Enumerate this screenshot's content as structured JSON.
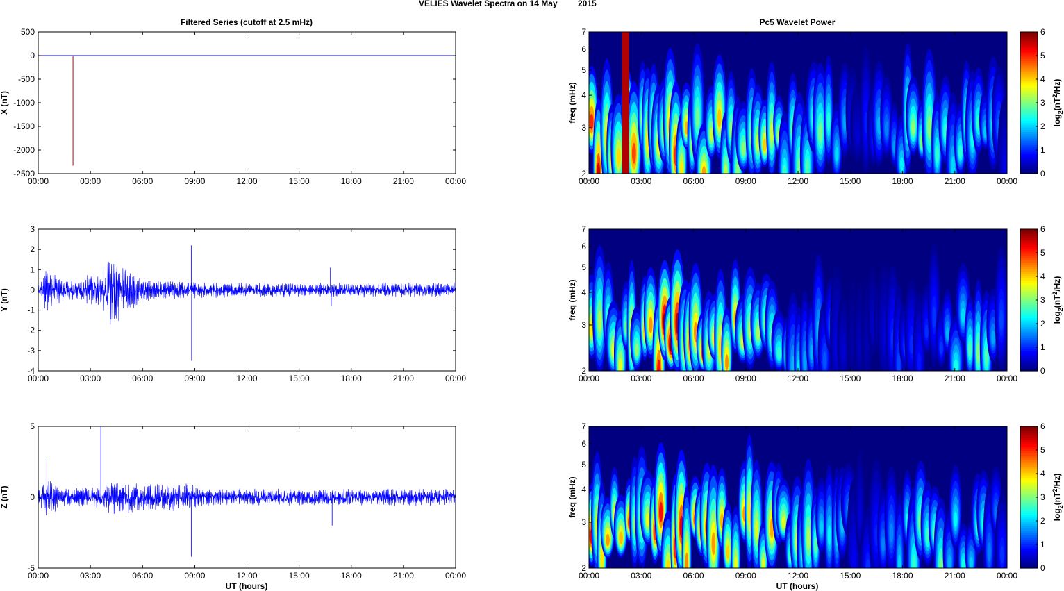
{
  "figure": {
    "title_left": "VELIES Wavelet Spectra on 14 May",
    "title_right": "2015",
    "left_column_title": "Filtered Series (cutoff at 2.5 mHz)",
    "right_column_title": "Pc5 Wavelet Power",
    "xlabel": "UT (hours)"
  },
  "chart_data": [
    {
      "type": "line",
      "name": "X",
      "ylabel": "X (nT)",
      "xlim": [
        0,
        24
      ],
      "ylim": [
        -2500,
        500
      ],
      "yticks": [
        500,
        0,
        -500,
        -1000,
        -1500,
        -2000,
        -2500
      ],
      "xticks": [
        "00:00",
        "03:00",
        "06:00",
        "09:00",
        "12:00",
        "15:00",
        "18:00",
        "21:00",
        "00:00"
      ],
      "line_color": "#0000ff",
      "features": [
        {
          "x": 2.0,
          "y": -2330,
          "color": "#8b1a1a"
        }
      ]
    },
    {
      "type": "line",
      "name": "Y",
      "ylabel": "Y (nT)",
      "xlim": [
        0,
        24
      ],
      "ylim": [
        -4,
        3
      ],
      "yticks": [
        3,
        2,
        1,
        0,
        -1,
        -2,
        -3,
        -4
      ],
      "xticks": [
        "00:00",
        "03:00",
        "06:00",
        "09:00",
        "12:00",
        "15:00",
        "18:00",
        "21:00",
        "00:00"
      ],
      "line_color": "#0000ff",
      "envelope": [
        [
          0,
          0.3
        ],
        [
          0.5,
          0.9
        ],
        [
          1.5,
          0.4
        ],
        [
          3.5,
          0.7
        ],
        [
          4.2,
          1.6
        ],
        [
          5,
          0.9
        ],
        [
          6.5,
          0.4
        ],
        [
          9,
          0.35
        ],
        [
          12,
          0.3
        ],
        [
          16,
          0.3
        ],
        [
          24,
          0.3
        ]
      ],
      "spikes": [
        {
          "x": 8.8,
          "y": 2.2
        },
        {
          "x": 8.82,
          "y": -3.5
        },
        {
          "x": 16.8,
          "y": 1.1
        },
        {
          "x": 16.85,
          "y": -0.8
        }
      ]
    },
    {
      "type": "line",
      "name": "Z",
      "ylabel": "Z (nT)",
      "xlim": [
        0,
        24
      ],
      "ylim": [
        -5,
        5
      ],
      "yticks": [
        5,
        0,
        -5
      ],
      "xticks": [
        "00:00",
        "03:00",
        "06:00",
        "09:00",
        "12:00",
        "15:00",
        "18:00",
        "21:00",
        "00:00"
      ],
      "line_color": "#0000ff",
      "envelope": [
        [
          0,
          0.5
        ],
        [
          0.5,
          1.1
        ],
        [
          1.5,
          0.5
        ],
        [
          3.5,
          0.6
        ],
        [
          4.2,
          1.0
        ],
        [
          6.5,
          0.8
        ],
        [
          8.5,
          0.8
        ],
        [
          10,
          0.5
        ],
        [
          24,
          0.5
        ]
      ],
      "spikes": [
        {
          "x": 0.5,
          "y": 2.6
        },
        {
          "x": 3.6,
          "y": 5.0
        },
        {
          "x": 8.8,
          "y": -4.2
        },
        {
          "x": 16.9,
          "y": -2.0
        }
      ]
    },
    {
      "type": "heatmap",
      "name": "X wavelet",
      "ylabel": "freq (mHz)",
      "ylim": [
        2,
        7
      ],
      "yscale": "log",
      "yticks": [
        7,
        6,
        5,
        4,
        3,
        2
      ],
      "xticks": [
        "00:00",
        "03:00",
        "06:00",
        "09:00",
        "12:00",
        "15:00",
        "18:00",
        "21:00",
        "00:00"
      ],
      "colorbar": {
        "label": "log2(nT2/Hz)",
        "range": [
          0,
          6
        ],
        "ticks": [
          6,
          5,
          4,
          3,
          2,
          1,
          0
        ]
      },
      "activity": [
        [
          0,
          5.5
        ],
        [
          1.5,
          5.5
        ],
        [
          2.2,
          6
        ],
        [
          3,
          4.2
        ],
        [
          4.5,
          4.8
        ],
        [
          6.5,
          4.2
        ],
        [
          8,
          4.6
        ],
        [
          10,
          3.8
        ],
        [
          12,
          3.3
        ],
        [
          14,
          2.6
        ],
        [
          15.5,
          0.5
        ],
        [
          17,
          2.0
        ],
        [
          18,
          2.6
        ],
        [
          19.3,
          3.8
        ],
        [
          20,
          2.4
        ],
        [
          21.5,
          2.8
        ],
        [
          23,
          3.0
        ],
        [
          24,
          0.5
        ]
      ],
      "hot_band": {
        "from": 1.9,
        "to": 2.3
      }
    },
    {
      "type": "heatmap",
      "name": "Y wavelet",
      "ylabel": "freq (mHz)",
      "ylim": [
        2,
        7
      ],
      "yscale": "log",
      "yticks": [
        7,
        6,
        5,
        4,
        3,
        2
      ],
      "xticks": [
        "00:00",
        "03:00",
        "06:00",
        "09:00",
        "12:00",
        "15:00",
        "18:00",
        "21:00",
        "00:00"
      ],
      "colorbar": {
        "label": "log2(nT2/Hz)",
        "range": [
          0,
          6
        ],
        "ticks": [
          6,
          5,
          4,
          3,
          2,
          1,
          0
        ]
      },
      "activity": [
        [
          0,
          4.2
        ],
        [
          1.5,
          3.5
        ],
        [
          2.8,
          4.3
        ],
        [
          3.5,
          5.5
        ],
        [
          4.3,
          6
        ],
        [
          5.5,
          5.3
        ],
        [
          7,
          4.5
        ],
        [
          8.5,
          4.3
        ],
        [
          10,
          4.0
        ],
        [
          11,
          3.0
        ],
        [
          12,
          2.4
        ],
        [
          13.5,
          1.5
        ],
        [
          15,
          0.3
        ],
        [
          17,
          0.6
        ],
        [
          18,
          1.5
        ],
        [
          20,
          1.0
        ],
        [
          21.2,
          2.8
        ],
        [
          23,
          2.7
        ],
        [
          24,
          0.3
        ]
      ]
    },
    {
      "type": "heatmap",
      "name": "Z wavelet",
      "ylabel": "freq (mHz)",
      "ylim": [
        2,
        7
      ],
      "yscale": "log",
      "yticks": [
        7,
        6,
        5,
        4,
        3,
        2
      ],
      "xticks": [
        "00:00",
        "03:00",
        "06:00",
        "09:00",
        "12:00",
        "15:00",
        "18:00",
        "21:00",
        "00:00"
      ],
      "colorbar": {
        "label": "log2(nT2/Hz)",
        "range": [
          0,
          6
        ],
        "ticks": [
          6,
          5,
          4,
          3,
          2,
          1,
          0
        ]
      },
      "activity": [
        [
          0,
          5.8
        ],
        [
          1.5,
          4.5
        ],
        [
          3,
          4.5
        ],
        [
          4.5,
          5.5
        ],
        [
          6,
          4.5
        ],
        [
          8,
          4.8
        ],
        [
          10,
          4.2
        ],
        [
          12,
          3.6
        ],
        [
          14,
          2.6
        ],
        [
          15.5,
          0.6
        ],
        [
          17,
          1.6
        ],
        [
          19.3,
          3.2
        ],
        [
          21,
          2.4
        ],
        [
          22.5,
          3.0
        ],
        [
          24,
          0.6
        ]
      ]
    }
  ]
}
